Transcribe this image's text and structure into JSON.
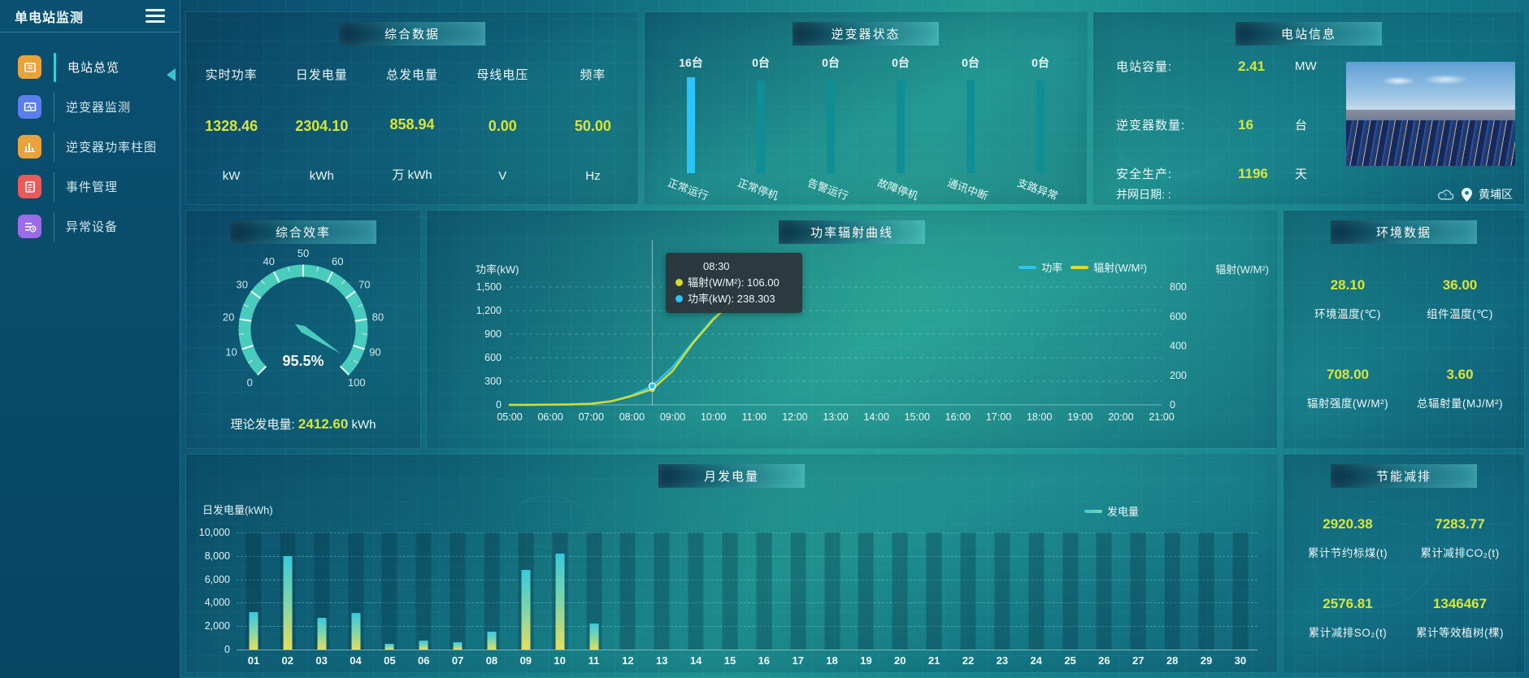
{
  "colors": {
    "accent_yellow": "#d6e63a",
    "accent_cyan": "#2bc4f5",
    "teal_bar": "#0f8f93",
    "gauge_teal": "#4accbd",
    "radiation_yellow": "#d3dd2e",
    "bar_top": "#38c9de",
    "bar_bottom": "#e4de5d"
  },
  "sidebar": {
    "title": "单电站监测",
    "items": [
      {
        "label": "电站总览",
        "icon": "overview-icon",
        "color": "#e8a33d",
        "active": true
      },
      {
        "label": "逆变器监测",
        "icon": "inverter-monitor-icon",
        "color": "#5b7fe8",
        "active": false
      },
      {
        "label": "逆变器功率柱图",
        "icon": "power-barchart-icon",
        "color": "#e8a33d",
        "active": false
      },
      {
        "label": "事件管理",
        "icon": "event-manage-icon",
        "color": "#e85b5b",
        "active": false
      },
      {
        "label": "异常设备",
        "icon": "abnormal-device-icon",
        "color": "#9b6be8",
        "active": false
      }
    ]
  },
  "panels": {
    "summary": {
      "title": "综合数据",
      "metrics": [
        {
          "label": "实时功率",
          "value": "1328.46",
          "unit": "kW"
        },
        {
          "label": "日发电量",
          "value": "2304.10",
          "unit": "kWh"
        },
        {
          "label": "总发电量",
          "value": "858.94",
          "unit": "万 kWh"
        },
        {
          "label": "母线电压",
          "value": "0.00",
          "unit": "V"
        },
        {
          "label": "频率",
          "value": "50.00",
          "unit": "Hz"
        }
      ]
    },
    "inverter_status": {
      "title": "逆变器状态",
      "bars": [
        {
          "count": "16台",
          "label": "正常运行",
          "highlight": true
        },
        {
          "count": "0台",
          "label": "正常停机",
          "highlight": false
        },
        {
          "count": "0台",
          "label": "告警运行",
          "highlight": false
        },
        {
          "count": "0台",
          "label": "故障停机",
          "highlight": false
        },
        {
          "count": "0台",
          "label": "通讯中断",
          "highlight": false
        },
        {
          "count": "0台",
          "label": "支路异常",
          "highlight": false
        }
      ]
    },
    "station_info": {
      "title": "电站信息",
      "rows": [
        {
          "label": "电站容量:",
          "value": "2.41",
          "unit": "MW"
        },
        {
          "label": "逆变器数量:",
          "value": "16",
          "unit": "台"
        },
        {
          "label": "安全生产:",
          "value": "1196",
          "unit": "天"
        }
      ],
      "grid_date_label": "并网日期:  :",
      "district": "黄埔区"
    },
    "efficiency": {
      "title": "综合效率",
      "value_display": "95.5%",
      "theory_label": "理论发电量:",
      "theory_value": "2412.60",
      "theory_unit": "kWh"
    },
    "power_curve": {
      "title": "功率辐射曲线",
      "y_left_name": "功率(kW)",
      "y_right_name": "辐射(W/M²)",
      "legend": [
        {
          "name": "功率",
          "color": "#2bc4f5"
        },
        {
          "name": "辐射(W/M²)",
          "color": "#d3dd2e"
        }
      ],
      "tooltip": {
        "time": "08:30",
        "rows": [
          {
            "name": "辐射(W/M²)",
            "value": "106.00",
            "color": "#d3dd2e"
          },
          {
            "name": "功率(kW)",
            "value": "238.303",
            "color": "#2bc4f5"
          }
        ]
      }
    },
    "environment": {
      "title": "环境数据",
      "cells": [
        {
          "value": "28.10",
          "label": "环境温度(℃)"
        },
        {
          "value": "36.00",
          "label": "组件温度(℃)"
        },
        {
          "value": "708.00",
          "label": "辐射强度(W/M²)"
        },
        {
          "value": "3.60",
          "label": "总辐射量(MJ/M²)"
        }
      ]
    },
    "monthly": {
      "title": "月发电量",
      "y_name": "日发电量(kWh)",
      "legend": {
        "name": "发电量"
      }
    },
    "saving": {
      "title": "节能减排",
      "cells": [
        {
          "value": "2920.38",
          "label": "累计节约标煤(t)"
        },
        {
          "value": "7283.77",
          "label": "累计减排CO₂(t)"
        },
        {
          "value": "2576.81",
          "label": "累计减排SO₂(t)"
        },
        {
          "value": "1346467",
          "label": "累计等效植树(棵)"
        }
      ]
    }
  },
  "chart_data": [
    {
      "id": "inverter_status",
      "type": "bar",
      "title": "逆变器状态",
      "categories": [
        "正常运行",
        "正常停机",
        "告警运行",
        "故障停机",
        "通讯中断",
        "支路异常"
      ],
      "values": [
        16,
        0,
        0,
        0,
        0,
        0
      ],
      "unit": "台",
      "note": "all bars drawn equal height; first highlighted cyan, others teal"
    },
    {
      "id": "efficiency_gauge",
      "type": "gauge",
      "title": "综合效率",
      "min": 0,
      "max": 100,
      "value": 95.5,
      "major_tick": 10,
      "minor_tick": 5,
      "start_angle": 225,
      "end_angle": -45
    },
    {
      "id": "power_radiation",
      "type": "line",
      "title": "功率辐射曲线",
      "x_ticks": [
        "05:00",
        "06:00",
        "07:00",
        "08:00",
        "09:00",
        "10:00",
        "11:00",
        "12:00",
        "13:00",
        "14:00",
        "15:00",
        "16:00",
        "17:00",
        "18:00",
        "19:00",
        "20:00",
        "21:00"
      ],
      "x_hour_range": [
        5,
        21
      ],
      "y_left": {
        "name": "功率(kW)",
        "min": 0,
        "max": 1500,
        "ticks": [
          "0",
          "300",
          "600",
          "900",
          "1,200",
          "1,500"
        ]
      },
      "y_right": {
        "name": "辐射(W/M²)",
        "min": 0,
        "max": 800,
        "ticks": [
          "0",
          "200",
          "400",
          "600",
          "800"
        ]
      },
      "grid": "dashed",
      "legend_position": "top-right",
      "series": [
        {
          "name": "功率",
          "color": "#2bc4f5",
          "axis": "left",
          "points": [
            [
              5,
              0
            ],
            [
              5.5,
              0
            ],
            [
              6,
              2
            ],
            [
              6.5,
              6
            ],
            [
              7,
              15
            ],
            [
              7.5,
              45
            ],
            [
              8,
              120
            ],
            [
              8.5,
              238.3
            ],
            [
              9,
              480
            ],
            [
              9.5,
              800
            ],
            [
              10,
              1100
            ],
            [
              10.5,
              1328.46
            ]
          ]
        },
        {
          "name": "辐射(W/M²)",
          "color": "#d3dd2e",
          "axis": "right",
          "points": [
            [
              5,
              0
            ],
            [
              5.5,
              0
            ],
            [
              6,
              1
            ],
            [
              6.5,
              3
            ],
            [
              7,
              8
            ],
            [
              7.5,
              25
            ],
            [
              8,
              60
            ],
            [
              8.5,
              106
            ],
            [
              9,
              230
            ],
            [
              9.5,
              420
            ],
            [
              10,
              580
            ],
            [
              10.5,
              708
            ]
          ]
        }
      ],
      "pointer": {
        "hour": 8.5,
        "power": 238.3,
        "radiation": 106
      }
    },
    {
      "id": "monthly_generation",
      "type": "bar",
      "title": "月发电量",
      "categories": [
        "01",
        "02",
        "03",
        "04",
        "05",
        "06",
        "07",
        "08",
        "09",
        "10",
        "11",
        "12",
        "13",
        "14",
        "15",
        "16",
        "17",
        "18",
        "19",
        "20",
        "21",
        "22",
        "23",
        "24",
        "25",
        "26",
        "27",
        "28",
        "29",
        "30"
      ],
      "values": [
        3200,
        8000,
        2700,
        3100,
        500,
        750,
        650,
        1500,
        6800,
        8200,
        2250,
        0,
        0,
        0,
        0,
        0,
        0,
        0,
        0,
        0,
        0,
        0,
        0,
        0,
        0,
        0,
        0,
        0,
        0,
        0
      ],
      "ylabel": "日发电量(kWh)",
      "ylim": [
        0,
        10000
      ],
      "y_ticks": [
        "0",
        "2,000",
        "4,000",
        "6,000",
        "8,000",
        "10,000"
      ],
      "legend": [
        "发电量"
      ],
      "grid": "dashed"
    }
  ]
}
